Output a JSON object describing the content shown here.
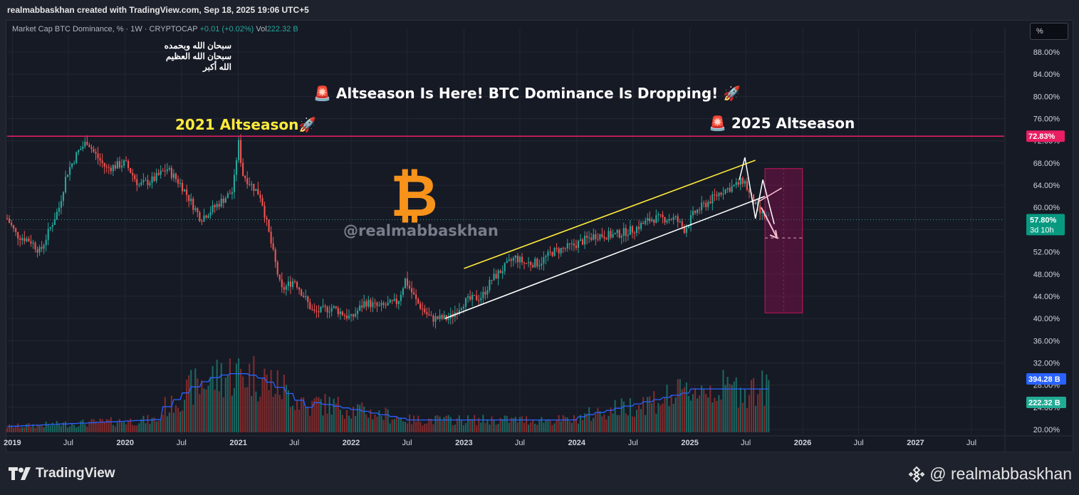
{
  "header": {
    "attribution": "realmabbaskhan created with TradingView.com, Sep 18, 2025 19:06 UTC+5"
  },
  "legend": {
    "symbol": "Market Cap BTC Dominance, % · 1W · CRYPTOCAP",
    "change": "+0.01 (+0.02%)",
    "vol_label": "Vol",
    "vol_value": "222.32 B"
  },
  "arabic_text": [
    "سبحان الله وبحمده",
    "سبحان الله العظيم",
    "الله أكبر"
  ],
  "scale_button": "%",
  "annotations": {
    "headline": "🚨 Altseason Is Here! BTC Dominance Is Dropping! 🚀",
    "label_2021": "2021 Altseason🚀",
    "label_2025": "🚨 2025 Altseason",
    "watermark_handle": "@realmabbaskhan",
    "bitcoin_symbol": "₿"
  },
  "footer": {
    "brand": "TradingView",
    "handle": "@ realmabbaskhan"
  },
  "colors": {
    "up": "#26a69a",
    "down": "#ef5350",
    "resistance": "#e91e63",
    "channel_upper": "#ffeb3b",
    "channel_lower": "#ffffff",
    "vol_ma": "#2962ff",
    "bitcoin": "#f7931a",
    "annotation_gold": "#ffeb3b"
  },
  "chart_data": {
    "type": "candlestick",
    "y_axis": {
      "ticks": [
        "88.00%",
        "84.00%",
        "80.00%",
        "76.00%",
        "72.00%",
        "68.00%",
        "64.00%",
        "60.00%",
        "56.00%",
        "52.00%",
        "48.00%",
        "44.00%",
        "40.00%",
        "36.00%",
        "32.00%",
        "28.00%",
        "24.00%",
        "20.00%"
      ],
      "ylim": [
        20,
        88
      ]
    },
    "x_axis": {
      "ticks": [
        "2019",
        "Jul",
        "2020",
        "Jul",
        "2021",
        "Jul",
        "2022",
        "Jul",
        "2023",
        "Jul",
        "2024",
        "Jul",
        "2025",
        "Jul",
        "2026",
        "Jul",
        "2027",
        "Jul"
      ],
      "xlim": [
        "2018-12-15",
        "2027-10-15"
      ]
    },
    "price_path": [
      [
        "2018-12-15",
        58
      ],
      [
        "2019-01-15",
        55
      ],
      [
        "2019-03-01",
        54
      ],
      [
        "2019-04-01",
        52
      ],
      [
        "2019-05-01",
        56
      ],
      [
        "2019-06-01",
        60
      ],
      [
        "2019-06-25",
        66
      ],
      [
        "2019-08-01",
        70
      ],
      [
        "2019-09-01",
        72
      ],
      [
        "2019-09-20",
        70
      ],
      [
        "2019-11-01",
        67
      ],
      [
        "2020-01-01",
        68
      ],
      [
        "2020-02-15",
        64
      ],
      [
        "2020-04-01",
        65
      ],
      [
        "2020-05-15",
        67
      ],
      [
        "2020-07-01",
        64
      ],
      [
        "2020-09-01",
        58
      ],
      [
        "2020-10-15",
        60
      ],
      [
        "2020-12-15",
        63
      ],
      [
        "2021-01-01",
        72
      ],
      [
        "2021-01-15",
        66
      ],
      [
        "2021-03-15",
        62
      ],
      [
        "2021-05-20",
        45
      ],
      [
        "2021-07-01",
        47
      ],
      [
        "2021-09-01",
        41
      ],
      [
        "2021-11-01",
        42
      ],
      [
        "2022-01-01",
        40
      ],
      [
        "2022-02-15",
        43
      ],
      [
        "2022-04-01",
        42
      ],
      [
        "2022-06-01",
        43
      ],
      [
        "2022-06-25",
        47
      ],
      [
        "2022-08-01",
        43
      ],
      [
        "2022-09-15",
        40
      ],
      [
        "2022-11-15",
        40
      ],
      [
        "2023-01-01",
        43
      ],
      [
        "2023-03-01",
        44
      ],
      [
        "2023-04-01",
        47
      ],
      [
        "2023-06-15",
        51
      ],
      [
        "2023-07-15",
        50
      ],
      [
        "2023-09-01",
        50
      ],
      [
        "2023-10-15",
        52
      ],
      [
        "2023-12-15",
        53
      ],
      [
        "2024-03-01",
        55
      ],
      [
        "2024-05-01",
        55
      ],
      [
        "2024-07-01",
        56
      ],
      [
        "2024-09-01",
        58
      ],
      [
        "2024-11-15",
        58
      ],
      [
        "2024-12-15",
        56
      ],
      [
        "2025-01-15",
        59
      ],
      [
        "2025-03-01",
        61
      ],
      [
        "2025-04-15",
        63
      ],
      [
        "2025-06-01",
        64
      ],
      [
        "2025-06-25",
        65
      ],
      [
        "2025-07-15",
        62
      ],
      [
        "2025-08-15",
        59
      ],
      [
        "2025-09-18",
        57.8
      ]
    ],
    "resistance": {
      "value": 72.83,
      "label": "72.83%"
    },
    "current": {
      "value": 57.8,
      "label": "57.80%",
      "countdown": "3d 10h"
    },
    "channel_upper": [
      [
        "2023-01-01",
        49
      ],
      [
        "2025-08-01",
        68.5
      ]
    ],
    "channel_lower": [
      [
        "2022-11-01",
        40
      ],
      [
        "2025-09-01",
        62
      ]
    ],
    "projection_box": {
      "from": "2025-09-01",
      "to": "2025-12-31",
      "top": 67,
      "bottom": 41
    },
    "volume": {
      "vol_ma_label": "394.28 B",
      "vol_label": "222.32 B"
    }
  }
}
